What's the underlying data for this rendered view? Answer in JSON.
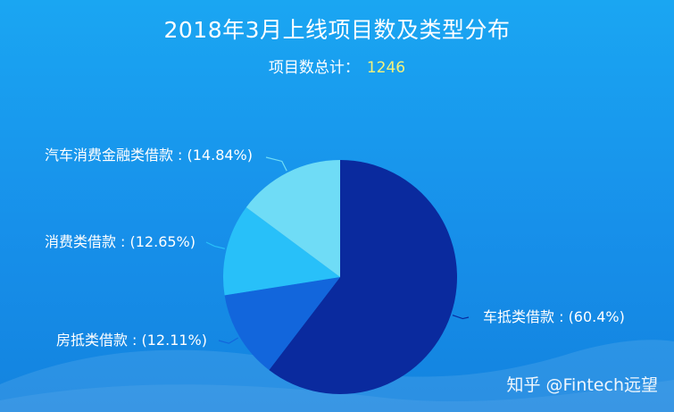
{
  "header": {
    "title": "2018年3月上线项目数及类型分布",
    "total_label": "项目数总计：",
    "total_value": "1246"
  },
  "watermark": "知乎 @Fintech远望",
  "chart_data": {
    "type": "pie",
    "title": "2018年3月上线项目数及类型分布",
    "subtitle": "项目数总计：1246",
    "slices": [
      {
        "name": "车抵类借款",
        "value": 60.4,
        "label": "车抵类借款 : (60.4%)",
        "color": "#0a2a9e"
      },
      {
        "name": "房抵类借款",
        "value": 12.11,
        "label": "房抵类借款 : (12.11%)",
        "color": "#1266dc"
      },
      {
        "name": "消费类借款",
        "value": 12.65,
        "label": "消费类借款 : (12.65%)",
        "color": "#28c0f9"
      },
      {
        "name": "汽车消费金融类借款",
        "value": 14.84,
        "label": "汽车消费金融类借款 : (14.84%)",
        "color": "#6fdcf6"
      }
    ]
  }
}
